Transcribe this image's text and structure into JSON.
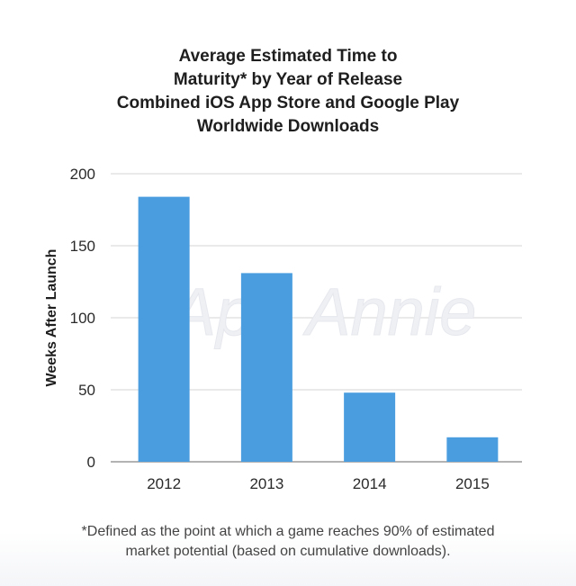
{
  "chart_data": {
    "type": "bar",
    "title_lines": [
      "Average Estimated Time to",
      "Maturity* by Year of Release",
      "Combined iOS App Store and Google Play",
      "Worldwide Downloads"
    ],
    "categories": [
      "2012",
      "2013",
      "2014",
      "2015"
    ],
    "values": [
      184,
      131,
      48,
      17
    ],
    "ylabel": "Weeks After Launch",
    "xlabel": "",
    "ylim": [
      0,
      200
    ],
    "yticks": [
      0,
      50,
      100,
      150,
      200
    ],
    "grid": true,
    "bar_color": "#4a9ee0",
    "watermark": "App Annie",
    "footnote_lines": [
      "*Defined as the point at which a game reaches 90% of estimated",
      "market potential (based on cumulative downloads)."
    ]
  }
}
